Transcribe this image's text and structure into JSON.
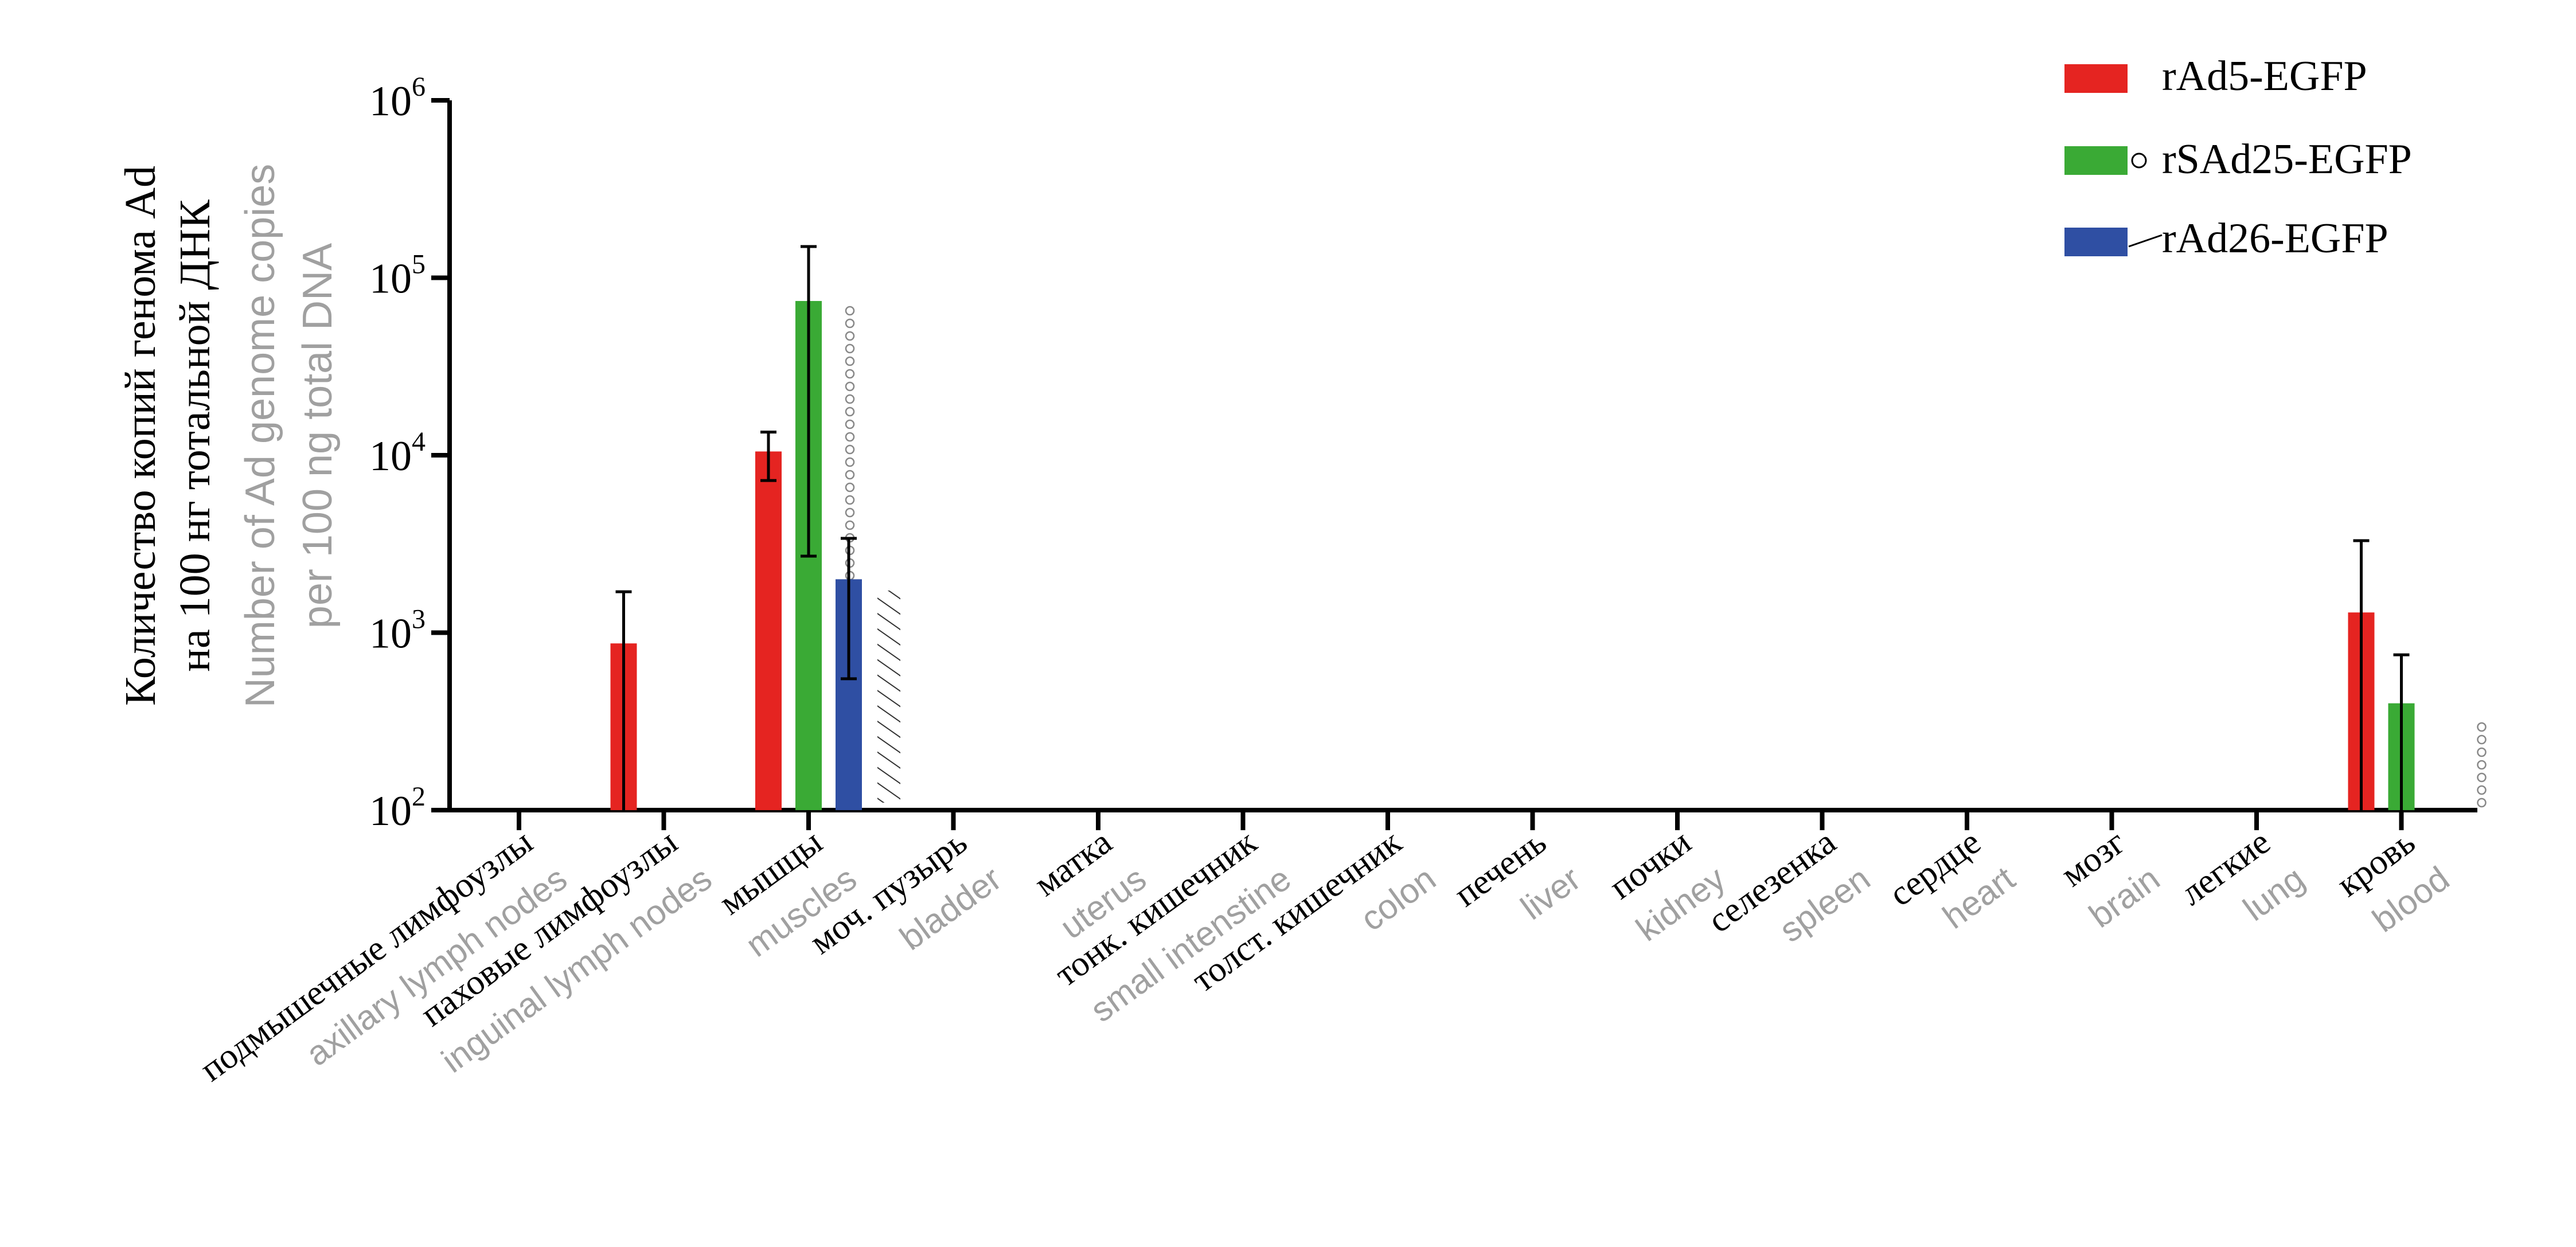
{
  "chart_data": {
    "type": "bar",
    "yscale": "log",
    "ylim": [
      100,
      1000000
    ],
    "ylabel": {
      "ru_line1": "Количество копий генома Ad",
      "ru_line2": "на 100 нг тотальной ДНК",
      "en_line1": "Number of Ad genome copies",
      "en_line2": "per 100 ng total DNA"
    },
    "y_ticks": [
      {
        "base": "10",
        "exp": "2",
        "value": 100
      },
      {
        "base": "10",
        "exp": "3",
        "value": 1000
      },
      {
        "base": "10",
        "exp": "4",
        "value": 10000
      },
      {
        "base": "10",
        "exp": "5",
        "value": 100000
      },
      {
        "base": "10",
        "exp": "6",
        "value": 1000000
      }
    ],
    "categories": [
      {
        "ru": "подмышечные лимфоузлы",
        "en": "axillary lymph nodes"
      },
      {
        "ru": "паховые лимфоузлы",
        "en": "inguinal lymph nodes"
      },
      {
        "ru": "мышцы",
        "en": "muscles"
      },
      {
        "ru": "моч. пузырь",
        "en": "bladder"
      },
      {
        "ru": "матка",
        "en": "uterus"
      },
      {
        "ru": "тонк. кишечник",
        "en": "small intenstine"
      },
      {
        "ru": "толст. кишечник",
        "en": "colon"
      },
      {
        "ru": "печень",
        "en": "liver"
      },
      {
        "ru": "почки",
        "en": "kidney"
      },
      {
        "ru": "селезенка",
        "en": "spleen"
      },
      {
        "ru": "сердце",
        "en": "heart"
      },
      {
        "ru": "мозг",
        "en": "brain"
      },
      {
        "ru": "легкие",
        "en": "lung"
      },
      {
        "ru": "кровь",
        "en": "blood"
      }
    ],
    "series": [
      {
        "name": "rAd5-EGFP",
        "color": "#e52421",
        "values": [
          null,
          870,
          10500,
          null,
          null,
          null,
          null,
          null,
          null,
          null,
          null,
          null,
          null,
          1300
        ],
        "err_high": [
          null,
          1700,
          13500,
          null,
          null,
          null,
          null,
          null,
          null,
          null,
          null,
          null,
          null,
          3300
        ],
        "err_low": [
          null,
          100,
          7200,
          null,
          null,
          null,
          null,
          null,
          null,
          null,
          null,
          null,
          null,
          100
        ]
      },
      {
        "name": "rSAd25-EGFP",
        "color": "#3aaa35",
        "values": [
          null,
          null,
          74000,
          null,
          null,
          null,
          null,
          null,
          null,
          null,
          null,
          null,
          null,
          400
        ],
        "err_high": [
          null,
          null,
          150000,
          null,
          null,
          null,
          null,
          null,
          null,
          null,
          null,
          null,
          null,
          750
        ],
        "err_low": [
          null,
          null,
          2700,
          null,
          null,
          null,
          null,
          null,
          null,
          null,
          null,
          null,
          null,
          100
        ]
      },
      {
        "name": "rAd26-EGFP",
        "color": "#2f4fa3",
        "values": [
          null,
          null,
          2000,
          null,
          null,
          null,
          null,
          null,
          null,
          null,
          null,
          null,
          null,
          null
        ],
        "err_high": [
          null,
          null,
          3400,
          null,
          null,
          null,
          null,
          null,
          null,
          null,
          null,
          null,
          null,
          null
        ],
        "err_low": [
          null,
          null,
          550,
          null,
          null,
          null,
          null,
          null,
          null,
          null,
          null,
          null,
          null,
          null
        ]
      }
    ],
    "legend_position": "top-right",
    "grid": false
  }
}
